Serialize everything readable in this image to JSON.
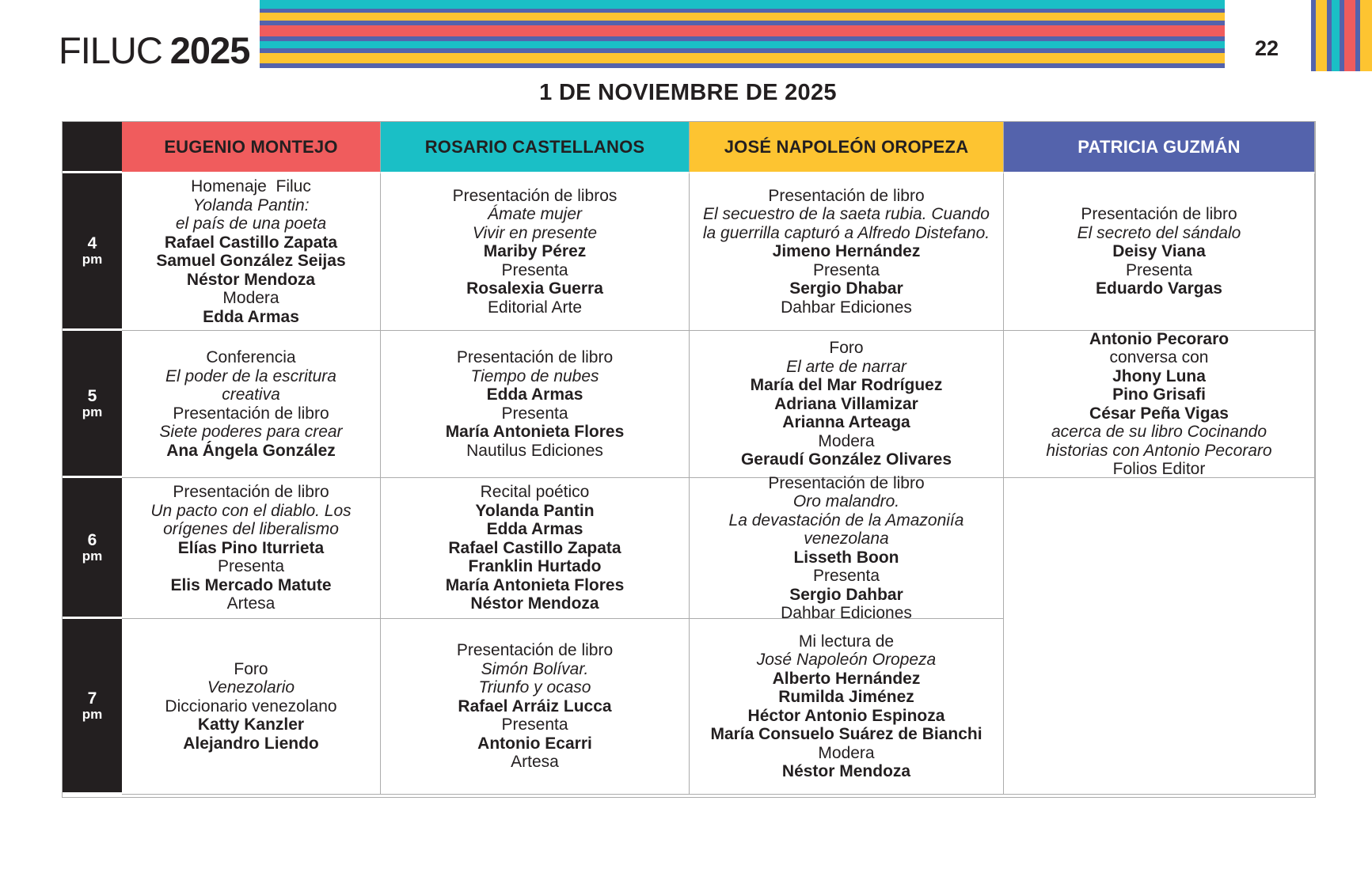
{
  "header": {
    "brand": "FILUC",
    "year": "2025",
    "page_number": "22"
  },
  "palette": {
    "red": "#F05C5D",
    "teal": "#1ABFC6",
    "yellow": "#FDC431",
    "blue": "#5463AC",
    "black": "#231F20",
    "white": "#FFFFFF",
    "border_gray": "#ACACAC"
  },
  "decor": {
    "horizontal_stripes": [
      "teal",
      "blue",
      "yellow",
      "blue",
      "red",
      "blue",
      "teal",
      "blue",
      "yellow",
      "blue"
    ],
    "vertical_stripes": [
      "blue",
      "yellow",
      "blue",
      "teal",
      "blue",
      "red",
      "blue",
      "yellow"
    ]
  },
  "schedule": {
    "date_title": "1 DE NOVIEMBRE DE 2025",
    "columns": [
      {
        "label": "EUGENIO MONTEJO",
        "color_key": "red",
        "text_color": "#231F20"
      },
      {
        "label": "ROSARIO CASTELLANOS",
        "color_key": "teal",
        "text_color": "#231F20"
      },
      {
        "label": "JOSÉ NAPOLEÓN OROPEZA",
        "color_key": "yellow",
        "text_color": "#231F20"
      },
      {
        "label": "PATRICIA GUZMÁN",
        "color_key": "blue",
        "text_color": "#FFFFFF"
      }
    ],
    "rows": [
      {
        "hour": "4",
        "meridiem": "pm",
        "cells": [
          {
            "lines": [
              {
                "text": "Homenaje  Filuc",
                "style": "regular"
              },
              {
                "text": "Yolanda Pantin:",
                "style": "italic"
              },
              {
                "text": "el país de una poeta",
                "style": "italic"
              },
              {
                "text": "Rafael Castillo Zapata",
                "style": "bold"
              },
              {
                "text": "Samuel González Seijas",
                "style": "bold"
              },
              {
                "text": "Néstor Mendoza",
                "style": "bold"
              },
              {
                "text": "Modera",
                "style": "regular"
              },
              {
                "text": "Edda Armas",
                "style": "bold"
              }
            ]
          },
          {
            "lines": [
              {
                "text": "Presentación de libros",
                "style": "regular"
              },
              {
                "text": "Ámate mujer",
                "style": "italic"
              },
              {
                "text": "Vivir en presente",
                "style": "italic"
              },
              {
                "text": "Mariby Pérez",
                "style": "bold"
              },
              {
                "text": "Presenta",
                "style": "regular"
              },
              {
                "text": "Rosalexia Guerra",
                "style": "bold"
              },
              {
                "text": "Editorial Arte",
                "style": "regular"
              }
            ]
          },
          {
            "lines": [
              {
                "text": "Presentación de libro",
                "style": "regular"
              },
              {
                "text": "El secuestro de la saeta rubia. Cuando",
                "style": "italic"
              },
              {
                "text": "la guerrilla capturó a Alfredo Distefano.",
                "style": "italic"
              },
              {
                "text": "Jimeno Hernández",
                "style": "bold"
              },
              {
                "text": "Presenta",
                "style": "regular"
              },
              {
                "text": "Sergio Dhabar",
                "style": "bold"
              },
              {
                "text": "Dahbar Ediciones",
                "style": "regular"
              }
            ]
          },
          {
            "lines": [
              {
                "text": "Presentación de libro",
                "style": "regular"
              },
              {
                "text": "El secreto del sándalo",
                "style": "italic"
              },
              {
                "text": "Deisy Viana",
                "style": "bold"
              },
              {
                "text": "Presenta",
                "style": "regular"
              },
              {
                "text": "Eduardo Vargas",
                "style": "bold"
              }
            ]
          }
        ]
      },
      {
        "hour": "5",
        "meridiem": "pm",
        "cells": [
          {
            "lines": [
              {
                "text": "Conferencia",
                "style": "regular"
              },
              {
                "text": "El poder de la escritura",
                "style": "italic"
              },
              {
                "text": "creativa",
                "style": "italic"
              },
              {
                "text": "Presentación de libro",
                "style": "regular"
              },
              {
                "text": "Siete poderes para crear",
                "style": "italic"
              },
              {
                "text": "Ana Ángela González",
                "style": "bold"
              }
            ]
          },
          {
            "lines": [
              {
                "text": "Presentación de libro",
                "style": "regular"
              },
              {
                "text": "Tiempo de nubes",
                "style": "italic"
              },
              {
                "text": "Edda Armas",
                "style": "bold"
              },
              {
                "text": "Presenta",
                "style": "regular"
              },
              {
                "text": "María Antonieta Flores",
                "style": "bold"
              },
              {
                "text": "Nautilus Ediciones",
                "style": "regular"
              }
            ]
          },
          {
            "lines": [
              {
                "text": "Foro",
                "style": "regular"
              },
              {
                "text": "El arte de narrar",
                "style": "italic"
              },
              {
                "text": "María del Mar Rodríguez",
                "style": "bold"
              },
              {
                "text": "Adriana Villamizar",
                "style": "bold"
              },
              {
                "text": "Arianna Arteaga",
                "style": "bold"
              },
              {
                "text": "Modera",
                "style": "regular"
              },
              {
                "text": "Geraudí González Olivares",
                "style": "bold"
              }
            ]
          },
          {
            "lines": [
              {
                "text": "Antonio Pecoraro",
                "style": "bold"
              },
              {
                "text": "conversa con",
                "style": "regular"
              },
              {
                "text": "Jhony Luna",
                "style": "bold"
              },
              {
                "text": "Pino Grisafi",
                "style": "bold"
              },
              {
                "text": "César Peña Vigas",
                "style": "bold"
              },
              {
                "text": "acerca de su libro Cocinando",
                "style": "italic"
              },
              {
                "text": "historias con Antonio Pecoraro",
                "style": "italic"
              },
              {
                "text": "Folios Editor",
                "style": "regular"
              }
            ]
          }
        ]
      },
      {
        "hour": "6",
        "meridiem": "pm",
        "cells": [
          {
            "lines": [
              {
                "text": "Presentación de libro",
                "style": "regular"
              },
              {
                "text": "Un pacto con el diablo. Los",
                "style": "italic"
              },
              {
                "text": "orígenes del liberalismo",
                "style": "italic"
              },
              {
                "text": "Elías Pino Iturrieta",
                "style": "bold"
              },
              {
                "text": "Presenta",
                "style": "regular"
              },
              {
                "text": "Elis Mercado Matute",
                "style": "bold"
              },
              {
                "text": "Artesa",
                "style": "regular"
              }
            ]
          },
          {
            "lines": [
              {
                "text": "Recital poético",
                "style": "regular"
              },
              {
                "text": "Yolanda Pantin",
                "style": "bold"
              },
              {
                "text": "Edda Armas",
                "style": "bold"
              },
              {
                "text": "Rafael Castillo Zapata",
                "style": "bold"
              },
              {
                "text": "Franklin Hurtado",
                "style": "bold"
              },
              {
                "text": "María Antonieta Flores",
                "style": "bold"
              },
              {
                "text": "Néstor Mendoza",
                "style": "bold"
              }
            ]
          },
          {
            "lines": [
              {
                "text": "Presentación de libro",
                "style": "regular"
              },
              {
                "text": "Oro malandro.",
                "style": "italic"
              },
              {
                "text": "La devastación de la Amazoniía",
                "style": "italic"
              },
              {
                "text": "venezolana",
                "style": "italic"
              },
              {
                "text": "Lisseth Boon",
                "style": "bold"
              },
              {
                "text": "Presenta",
                "style": "regular"
              },
              {
                "text": "Sergio Dahbar",
                "style": "bold"
              },
              {
                "text": "Dahbar Ediciones",
                "style": "regular"
              }
            ]
          },
          {
            "lines": [],
            "merged_down": true
          }
        ]
      },
      {
        "hour": "7",
        "meridiem": "pm",
        "cells": [
          {
            "lines": [
              {
                "text": "Foro",
                "style": "regular"
              },
              {
                "text": "Venezolario",
                "style": "italic"
              },
              {
                "text": "Diccionario venezolano",
                "style": "regular"
              },
              {
                "text": "Katty Kanzler",
                "style": "bold"
              },
              {
                "text": "Alejandro Liendo",
                "style": "bold"
              }
            ]
          },
          {
            "lines": [
              {
                "text": "Presentación de libro",
                "style": "regular"
              },
              {
                "text": "Simón Bolívar.",
                "style": "italic"
              },
              {
                "text": "Triunfo y ocaso",
                "style": "italic"
              },
              {
                "text": "Rafael Arráiz Lucca",
                "style": "bold"
              },
              {
                "text": "Presenta",
                "style": "regular"
              },
              {
                "text": "Antonio Ecarri",
                "style": "bold"
              },
              {
                "text": "Artesa",
                "style": "regular"
              }
            ]
          },
          {
            "lines": [
              {
                "text": "Mi lectura de",
                "style": "regular"
              },
              {
                "text": "José Napoleón Oropeza",
                "style": "italic"
              },
              {
                "text": "Alberto Hernández",
                "style": "bold"
              },
              {
                "text": "Rumilda Jiménez",
                "style": "bold"
              },
              {
                "text": "Héctor Antonio Espinoza",
                "style": "bold"
              },
              {
                "text": "María Consuelo Suárez de Bianchi",
                "style": "bold"
              },
              {
                "text": "Modera",
                "style": "regular"
              },
              {
                "text": "Néstor Mendoza",
                "style": "bold"
              }
            ]
          },
          null
        ]
      }
    ]
  }
}
